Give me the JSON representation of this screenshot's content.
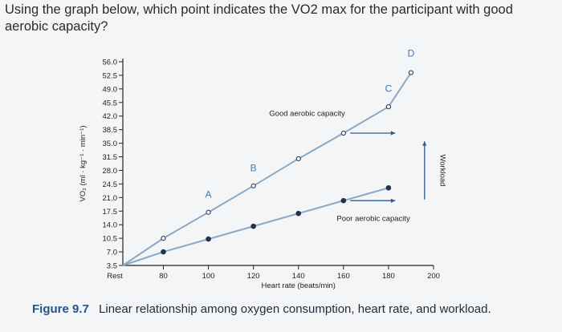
{
  "question": {
    "text": "Using the graph below, which point indicates the VO2 max for the participant with good aerobic capacity?"
  },
  "figure": {
    "number": "Figure 9.7",
    "caption": "Linear relationship among oxygen consumption, heart rate, and workload."
  },
  "colors": {
    "good_line": "#8aa9c7",
    "poor_line": "#8aa9c7",
    "point_fill": "#1f3550",
    "label_accent": "#3f79b8",
    "arrow": "#2d5a86"
  },
  "chart_data": {
    "type": "line",
    "xlabel": "Heart rate (beats/min)",
    "ylabel": "VO₂ (ml · kg⁻¹ · min⁻¹)",
    "x_ticks": [
      "Rest",
      "80",
      "100",
      "120",
      "140",
      "160",
      "180",
      "200"
    ],
    "x_tick_values": [
      62,
      80,
      100,
      120,
      140,
      160,
      180,
      200
    ],
    "y_ticks": [
      "3.5",
      "7.0",
      "10.5",
      "14.0",
      "17.5",
      "21.0",
      "24.5",
      "28.0",
      "31.5",
      "35.0",
      "38.5",
      "42.0",
      "45.5",
      "49.0",
      "52.5",
      "56.0"
    ],
    "y_tick_values": [
      3.5,
      7.0,
      10.5,
      14.0,
      17.5,
      21.0,
      24.5,
      28.0,
      31.5,
      35.0,
      38.5,
      42.0,
      45.5,
      49.0,
      52.5,
      56.0
    ],
    "xlim": [
      62,
      200
    ],
    "ylim": [
      3.5,
      56.0
    ],
    "grid": false,
    "series": [
      {
        "name": "Good aerobic capacity",
        "style": "open",
        "x": [
          62,
          80,
          100,
          120,
          140,
          160,
          180,
          190
        ],
        "y": [
          3.5,
          10.5,
          17.2,
          24.0,
          31.0,
          37.6,
          44.4,
          53.2
        ]
      },
      {
        "name": "Poor aerobic capacity",
        "style": "filled",
        "x": [
          62,
          80,
          100,
          120,
          140,
          160,
          180
        ],
        "y": [
          3.5,
          7.0,
          10.3,
          13.6,
          16.9,
          20.2,
          23.5
        ]
      }
    ],
    "point_labels": [
      {
        "text": "A",
        "x": 100,
        "y": 21.0
      },
      {
        "text": "B",
        "x": 120,
        "y": 27.8
      },
      {
        "text": "C",
        "x": 180,
        "y": 48.2
      },
      {
        "text": "D",
        "x": 190,
        "y": 57.3
      }
    ],
    "annotations": [
      {
        "text": "Good aerobic capacity",
        "x": 127,
        "y": 42.0
      },
      {
        "text": "Poor aerobic capacity",
        "x": 157,
        "y": 15.0
      },
      {
        "text": "Workload",
        "x": 203,
        "y": 28.0
      }
    ],
    "arrows": [
      {
        "from": [
          163,
          37.6
        ],
        "to": [
          183,
          37.6
        ]
      },
      {
        "from": [
          163,
          20.2
        ],
        "to": [
          183,
          20.2
        ]
      },
      {
        "from": [
          196,
          20.5
        ],
        "to": [
          196,
          35.5
        ]
      }
    ]
  }
}
